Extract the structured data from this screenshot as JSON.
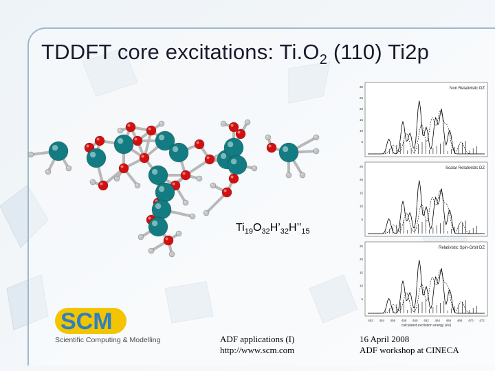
{
  "slide": {
    "title_prefix": "TDDFT core excitations: Ti.O",
    "title_sub": "2",
    "title_suffix": " (110) Ti2p"
  },
  "formula": [
    {
      "text": "Ti",
      "sub": false
    },
    {
      "text": "19",
      "sub": true
    },
    {
      "text": "O",
      "sub": false
    },
    {
      "text": "32",
      "sub": true
    },
    {
      "text": "H’",
      "sub": false
    },
    {
      "text": "32",
      "sub": true
    },
    {
      "text": "H’’",
      "sub": false
    },
    {
      "text": "15",
      "sub": true
    }
  ],
  "spectra": {
    "panels": [
      {
        "label": "Non Relativistic DZ",
        "yticks": [
          "30",
          "25",
          "20",
          "15",
          "10",
          "5"
        ]
      },
      {
        "label": "Scalar Relativistic DZ",
        "yticks": [
          "25",
          "20",
          "15",
          "10",
          "5"
        ]
      },
      {
        "label": "Relativistic Spin-Orbit DZ",
        "yticks": [
          "25",
          "20",
          "15",
          "10",
          "5"
        ]
      }
    ],
    "xticks": [
      "452",
      "454",
      "456",
      "458",
      "460",
      "462",
      "464",
      "466",
      "468",
      "470",
      "472"
    ],
    "xlabel": "calculated excitation energy (eV)"
  },
  "logo": {
    "letters": "SCM",
    "tagline": "Scientific Computing & Modelling"
  },
  "footer": {
    "left_line1": "ADF applications (I)",
    "left_line2": "http://www.scm.com",
    "right_line1": "16 April 2008",
    "right_line2": "ADF workshop at CINECA"
  },
  "colors": {
    "titanium": "#127c82",
    "oxygen": "#d40f0f",
    "hydrogen": "#c4c4c4",
    "logo_blue": "#2f7fc1",
    "logo_yellow": "#f2c500",
    "frame": "#9fb8cc"
  }
}
